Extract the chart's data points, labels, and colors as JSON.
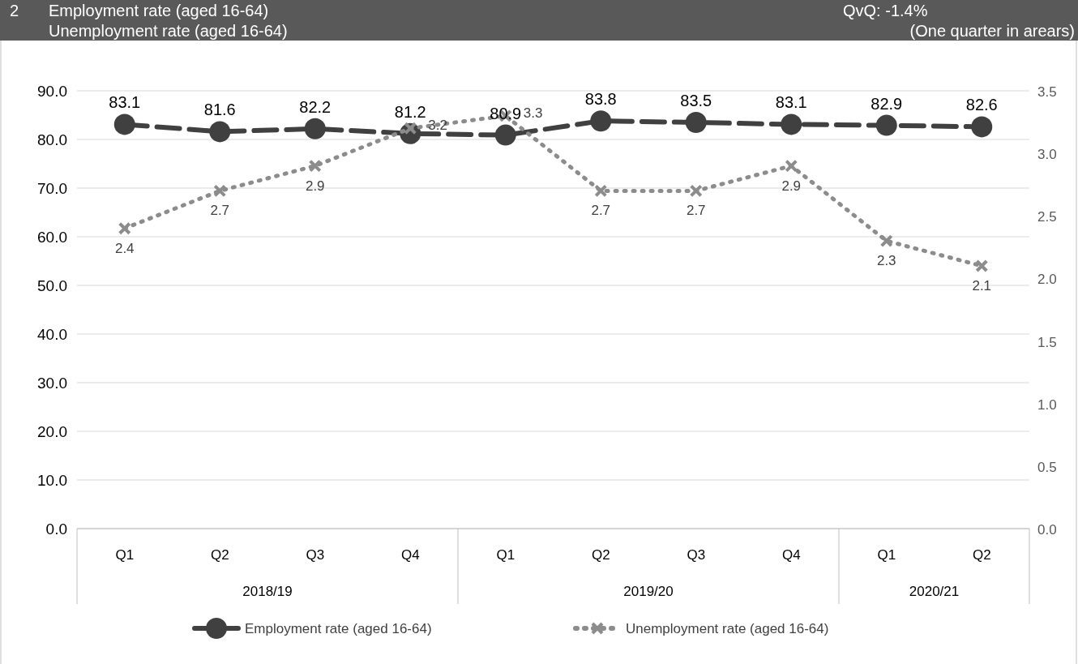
{
  "chart_data": {
    "type": "line",
    "title": "Employment rate (aged 16-64)",
    "subtitle": "Unemployment rate (aged 16-64)",
    "annotations": [
      "2",
      "QvQ: -1.4%",
      "(One quarter in arears)",
      "2018/19",
      "2019/20",
      "2020/21"
    ],
    "categories": [
      "Q1",
      "Q2",
      "Q3",
      "Q4",
      "Q1",
      "Q2",
      "Q3",
      "Q4",
      "Q1",
      "Q2"
    ],
    "series": [
      {
        "name": "Employment rate (aged 16-64)",
        "color": "#404040",
        "values": [
          83.1,
          81.6,
          82.2,
          81.2,
          80.9,
          83.8,
          83.5,
          83.1,
          82.9,
          82.6
        ],
        "marker": "circle",
        "line_style": "dashed"
      },
      {
        "name": "Unemployment rate (aged 16-64)",
        "color": "#8c8c8c",
        "values": [
          2.4,
          2.7,
          2.9,
          3.2,
          3.3,
          2.7,
          2.7,
          2.9,
          2.3,
          2.1
        ],
        "marker": "cross",
        "line_style": "dotted",
        "axis": "y2"
      }
    ],
    "ylim": [
      0,
      90
    ],
    "yticks": [
      {
        "value": 0,
        "label": "0.0"
      },
      {
        "value": 10,
        "label": "10.0"
      },
      {
        "value": 20,
        "label": "20.0"
      },
      {
        "value": 30,
        "label": "30.0"
      },
      {
        "value": 40,
        "label": "40.0"
      },
      {
        "value": 50,
        "label": "50.0"
      },
      {
        "value": 60,
        "label": "60.0"
      },
      {
        "value": 70,
        "label": "70.0"
      },
      {
        "value": 80,
        "label": "80.0"
      },
      {
        "value": 90,
        "label": "90.0"
      }
    ],
    "y2lim": [
      0,
      3.5
    ],
    "y2ticks": [
      {
        "value": 0,
        "label": "0.0"
      },
      {
        "value": 0.5,
        "label": "0.5"
      },
      {
        "value": 1,
        "label": "1.0"
      },
      {
        "value": 1.5,
        "label": "1.5"
      },
      {
        "value": 2,
        "label": "2.0"
      },
      {
        "value": 2.5,
        "label": "2.5"
      },
      {
        "value": 3,
        "label": "3.0"
      },
      {
        "value": 3.5,
        "label": "3.5"
      }
    ],
    "grid": "y",
    "legend": "bottom",
    "data_labels": true
  }
}
